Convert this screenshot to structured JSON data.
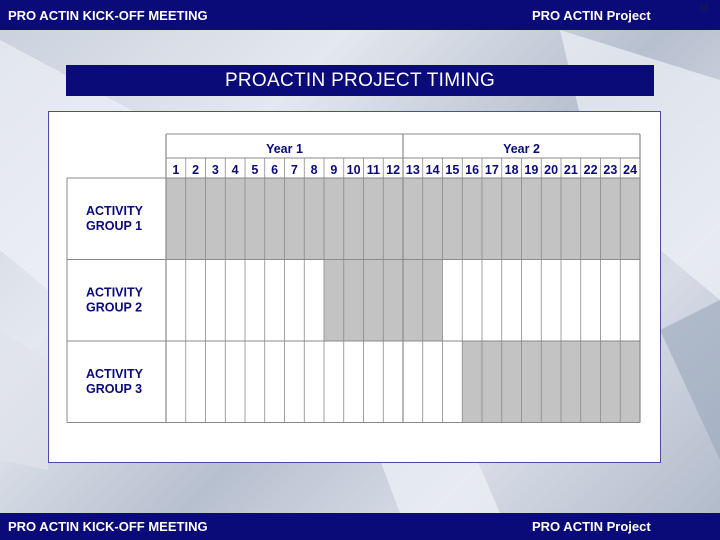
{
  "header": {
    "left": "PRO ACTIN KICK-OFF MEETING",
    "right": "PRO ACTIN Project",
    "page_number": "12"
  },
  "footer": {
    "left": "PRO ACTIN KICK-OFF MEETING",
    "right": "PRO ACTIN Project"
  },
  "slide_title": "PROACTIN PROJECT  TIMING",
  "colors": {
    "bar": "#0a0a78",
    "shade": "#c3c3c3",
    "grid": "#8a8a8a",
    "label": "#0a0a78"
  },
  "chart_data": {
    "type": "table",
    "years": [
      {
        "label": "Year 1",
        "months": [
          1,
          12
        ]
      },
      {
        "label": "Year 2",
        "months": [
          13,
          24
        ]
      }
    ],
    "months": [
      "1",
      "2",
      "3",
      "4",
      "5",
      "6",
      "7",
      "8",
      "9",
      "10",
      "11",
      "12",
      "13",
      "14",
      "15",
      "16",
      "17",
      "18",
      "19",
      "20",
      "21",
      "22",
      "23",
      "24"
    ],
    "rows": [
      {
        "label_line1": "ACTIVITY",
        "label_line2": "GROUP 1",
        "start_month": 1,
        "end_month": 24
      },
      {
        "label_line1": "ACTIVITY",
        "label_line2": "GROUP 2",
        "start_month": 9,
        "end_month": 14
      },
      {
        "label_line1": "ACTIVITY",
        "label_line2": "GROUP 3",
        "start_month": 16,
        "end_month": 24
      }
    ]
  }
}
